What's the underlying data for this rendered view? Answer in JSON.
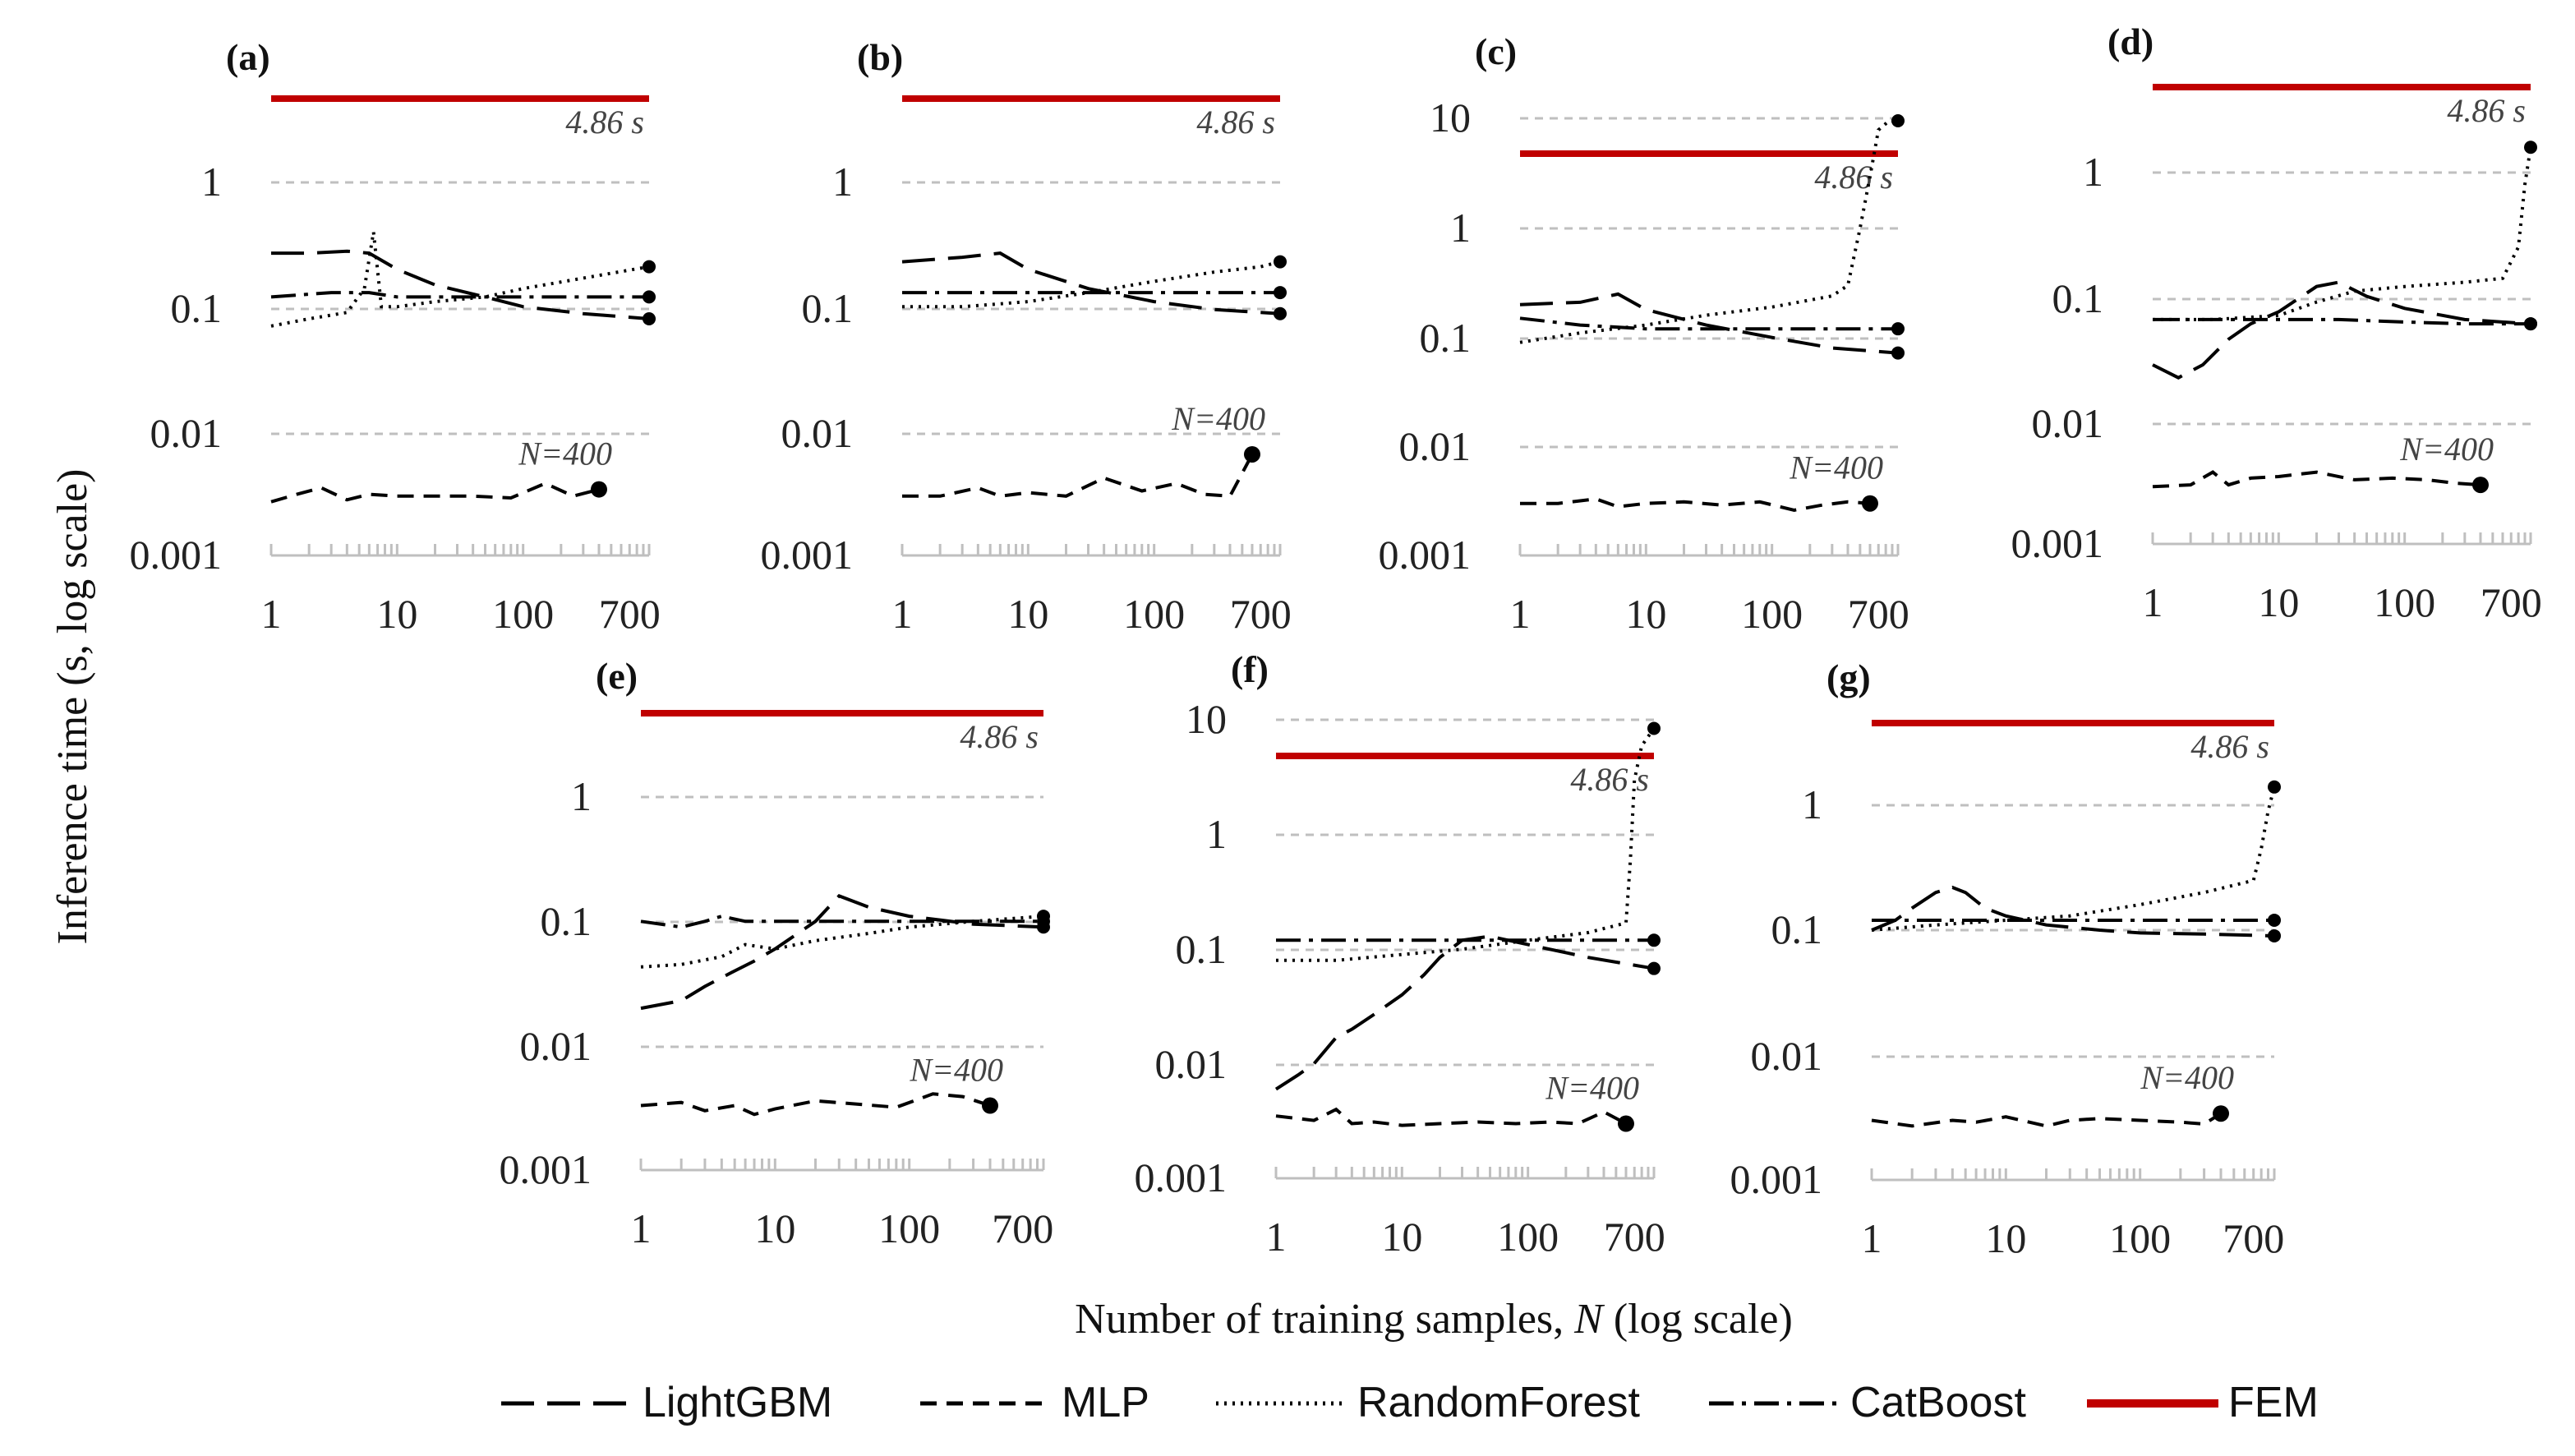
{
  "figure": {
    "ylabel": "Inference time (s, log scale)",
    "xlabel_prefix": "Number of training samples, ",
    "xlabel_var": "N",
    "xlabel_suffix": " (log scale)"
  },
  "legend": [
    {
      "name": "LightGBM",
      "style": "longdash",
      "color": "#000000"
    },
    {
      "name": "MLP",
      "style": "dash",
      "color": "#000000"
    },
    {
      "name": "RandomForest",
      "style": "dot",
      "color": "#000000"
    },
    {
      "name": "CatBoost",
      "style": "dashdot",
      "color": "#000000"
    },
    {
      "name": "FEM",
      "style": "solid",
      "color": "#c00000"
    }
  ],
  "colors": {
    "fem": "#c00000",
    "series": "#000000",
    "grid": "#bfbfbf"
  },
  "chart_data": [
    {
      "label": "(a)",
      "type": "line",
      "x_scale": "log",
      "y_scale": "log",
      "xlim": [
        1,
        1000
      ],
      "ylim": [
        0.001,
        5
      ],
      "xticks": [
        "1",
        "10",
        "100",
        "700"
      ],
      "yticks": [
        "0.001",
        "0.01",
        "0.1",
        "1"
      ],
      "fem_value": 4.86,
      "fem_label": "4.86 s",
      "n_label": "N=400",
      "series": [
        {
          "name": "LightGBM",
          "x": [
            1,
            2,
            4,
            6,
            10,
            20,
            50,
            100,
            300,
            1000
          ],
          "y": [
            0.27,
            0.27,
            0.28,
            0.27,
            0.2,
            0.15,
            0.12,
            0.1,
            0.088,
            0.08
          ]
        },
        {
          "name": "MLP",
          "x": [
            1,
            1.6,
            2.5,
            4,
            6,
            10,
            20,
            40,
            80,
            150,
            250,
            400
          ],
          "y": [
            0.0027,
            0.0031,
            0.0035,
            0.0028,
            0.0031,
            0.003,
            0.003,
            0.003,
            0.0029,
            0.0038,
            0.003,
            0.0034
          ]
        },
        {
          "name": "RandomForest",
          "x": [
            1,
            2,
            4,
            5.5,
            6.5,
            7.5,
            10,
            20,
            50,
            100,
            300,
            1000
          ],
          "y": [
            0.07,
            0.08,
            0.09,
            0.14,
            0.4,
            0.1,
            0.1,
            0.11,
            0.12,
            0.14,
            0.17,
            0.21
          ]
        },
        {
          "name": "CatBoost",
          "x": [
            1,
            3,
            6,
            10,
            30,
            100,
            300,
            1000
          ],
          "y": [
            0.12,
            0.13,
            0.13,
            0.12,
            0.12,
            0.12,
            0.12,
            0.12
          ]
        }
      ]
    },
    {
      "label": "(b)",
      "type": "line",
      "x_scale": "log",
      "y_scale": "log",
      "xlim": [
        1,
        1000
      ],
      "ylim": [
        0.001,
        5
      ],
      "xticks": [
        "1",
        "10",
        "100",
        "700"
      ],
      "yticks": [
        "0.001",
        "0.01",
        "0.1",
        "1"
      ],
      "fem_value": 4.86,
      "fem_label": "4.86 s",
      "n_label": "N=400",
      "series": [
        {
          "name": "LightGBM",
          "x": [
            1,
            3,
            6,
            10,
            30,
            100,
            300,
            1000
          ],
          "y": [
            0.23,
            0.25,
            0.27,
            0.2,
            0.14,
            0.11,
            0.095,
            0.088
          ]
        },
        {
          "name": "MLP",
          "x": [
            1,
            2,
            4,
            6,
            10,
            20,
            40,
            80,
            150,
            250,
            400,
            600
          ],
          "y": [
            0.003,
            0.003,
            0.0035,
            0.003,
            0.0032,
            0.003,
            0.0042,
            0.0033,
            0.0038,
            0.0031,
            0.003,
            0.0065
          ]
        },
        {
          "name": "RandomForest",
          "x": [
            1,
            3,
            10,
            30,
            100,
            300,
            700,
            1000
          ],
          "y": [
            0.1,
            0.1,
            0.11,
            0.13,
            0.16,
            0.19,
            0.21,
            0.23
          ]
        },
        {
          "name": "CatBoost",
          "x": [
            1,
            3,
            10,
            30,
            100,
            300,
            1000
          ],
          "y": [
            0.13,
            0.13,
            0.13,
            0.13,
            0.13,
            0.13,
            0.13
          ]
        }
      ]
    },
    {
      "label": "(c)",
      "type": "line",
      "x_scale": "log",
      "y_scale": "log",
      "xlim": [
        1,
        1000
      ],
      "ylim": [
        0.001,
        15
      ],
      "xticks": [
        "1",
        "10",
        "100",
        "700"
      ],
      "yticks": [
        "0.001",
        "0.01",
        "0.1",
        "1",
        "10"
      ],
      "fem_value": 4.86,
      "fem_label": "4.86 s",
      "n_label": "N=400",
      "series": [
        {
          "name": "LightGBM",
          "x": [
            1,
            3,
            6,
            10,
            30,
            100,
            300,
            1000
          ],
          "y": [
            0.2,
            0.21,
            0.25,
            0.18,
            0.13,
            0.1,
            0.08,
            0.072
          ]
        },
        {
          "name": "MLP",
          "x": [
            1,
            2,
            4,
            6,
            10,
            20,
            40,
            80,
            150,
            250,
            400,
            600
          ],
          "y": [
            0.003,
            0.003,
            0.0033,
            0.0028,
            0.003,
            0.0031,
            0.0029,
            0.0031,
            0.0026,
            0.0029,
            0.0031,
            0.003
          ]
        },
        {
          "name": "RandomForest",
          "x": [
            1,
            3,
            10,
            30,
            100,
            300,
            400,
            500,
            600,
            700,
            850,
            1000
          ],
          "y": [
            0.09,
            0.11,
            0.13,
            0.16,
            0.19,
            0.24,
            0.3,
            1.0,
            3.0,
            8.0,
            13.0,
            15.0
          ]
        },
        {
          "name": "CatBoost",
          "x": [
            1,
            3,
            10,
            30,
            100,
            300,
            1000
          ],
          "y": [
            0.15,
            0.13,
            0.12,
            0.12,
            0.12,
            0.12,
            0.12
          ]
        }
      ]
    },
    {
      "label": "(d)",
      "type": "line",
      "x_scale": "log",
      "y_scale": "log",
      "xlim": [
        1,
        1000
      ],
      "ylim": [
        0.001,
        5
      ],
      "xticks": [
        "1",
        "10",
        "100",
        "700"
      ],
      "yticks": [
        "0.001",
        "0.01",
        "0.1",
        "1"
      ],
      "fem_value": 4.86,
      "fem_label": "4.86 s",
      "n_label": "N=400",
      "series": [
        {
          "name": "LightGBM",
          "x": [
            1,
            1.6,
            2.5,
            4,
            6,
            10,
            20,
            30,
            50,
            100,
            300,
            1000
          ],
          "y": [
            0.028,
            0.022,
            0.028,
            0.045,
            0.06,
            0.075,
            0.12,
            0.13,
            0.1,
            0.08,
            0.065,
            0.06
          ]
        },
        {
          "name": "MLP",
          "x": [
            1,
            2,
            3,
            4,
            6,
            10,
            20,
            40,
            80,
            150,
            250,
            400
          ],
          "y": [
            0.0029,
            0.003,
            0.0038,
            0.003,
            0.0034,
            0.0035,
            0.0038,
            0.0033,
            0.0034,
            0.0033,
            0.0031,
            0.003
          ]
        },
        {
          "name": "RandomForest",
          "x": [
            1,
            3,
            10,
            20,
            40,
            100,
            300,
            600,
            800,
            900,
            1000
          ],
          "y": [
            0.065,
            0.065,
            0.07,
            0.09,
            0.11,
            0.12,
            0.13,
            0.14,
            0.25,
            0.8,
            1.6
          ]
        },
        {
          "name": "CatBoost",
          "x": [
            1,
            3,
            10,
            30,
            100,
            300,
            1000
          ],
          "y": [
            0.065,
            0.065,
            0.065,
            0.065,
            0.062,
            0.06,
            0.06
          ]
        }
      ]
    },
    {
      "label": "(e)",
      "type": "line",
      "x_scale": "log",
      "y_scale": "log",
      "xlim": [
        1,
        1000
      ],
      "ylim": [
        0.001,
        5
      ],
      "xticks": [
        "1",
        "10",
        "100",
        "700"
      ],
      "yticks": [
        "0.001",
        "0.01",
        "0.1",
        "1"
      ],
      "fem_value": 4.86,
      "fem_label": "4.86 s",
      "n_label": "N=400",
      "series": [
        {
          "name": "LightGBM",
          "x": [
            1,
            2,
            3,
            5,
            7,
            10,
            20,
            30,
            50,
            100,
            300,
            1000
          ],
          "y": [
            0.02,
            0.023,
            0.03,
            0.04,
            0.048,
            0.06,
            0.1,
            0.16,
            0.13,
            0.11,
            0.095,
            0.09
          ]
        },
        {
          "name": "MLP",
          "x": [
            1,
            2,
            3,
            5,
            7,
            10,
            20,
            40,
            80,
            150,
            250,
            400
          ],
          "y": [
            0.0033,
            0.0035,
            0.003,
            0.0033,
            0.0028,
            0.0031,
            0.0036,
            0.0034,
            0.0032,
            0.0041,
            0.0039,
            0.0033
          ]
        },
        {
          "name": "RandomForest",
          "x": [
            1,
            2,
            4,
            6,
            10,
            20,
            50,
            100,
            300,
            1000
          ],
          "y": [
            0.043,
            0.045,
            0.052,
            0.065,
            0.06,
            0.07,
            0.08,
            0.09,
            0.1,
            0.11
          ]
        },
        {
          "name": "CatBoost",
          "x": [
            1,
            2,
            3,
            4,
            6,
            10,
            30,
            100,
            300,
            1000
          ],
          "y": [
            0.1,
            0.09,
            0.1,
            0.11,
            0.1,
            0.1,
            0.1,
            0.1,
            0.1,
            0.1
          ]
        }
      ]
    },
    {
      "label": "(f)",
      "type": "line",
      "x_scale": "log",
      "y_scale": "log",
      "xlim": [
        1,
        1000
      ],
      "ylim": [
        0.001,
        15
      ],
      "xticks": [
        "1",
        "10",
        "100",
        "700"
      ],
      "yticks": [
        "0.001",
        "0.01",
        "0.1",
        "1",
        "10"
      ],
      "fem_value": 4.86,
      "fem_label": "4.86 s",
      "n_label": "N=400",
      "series": [
        {
          "name": "LightGBM",
          "x": [
            1,
            1.5,
            2,
            3,
            4,
            6,
            10,
            15,
            20,
            30,
            50,
            100,
            300,
            1000
          ],
          "y": [
            0.006,
            0.008,
            0.01,
            0.017,
            0.02,
            0.027,
            0.04,
            0.06,
            0.085,
            0.12,
            0.13,
            0.11,
            0.085,
            0.068
          ]
        },
        {
          "name": "MLP",
          "x": [
            1,
            2,
            3,
            4,
            6,
            10,
            20,
            40,
            80,
            150,
            250,
            400,
            600
          ],
          "y": [
            0.0035,
            0.0032,
            0.004,
            0.003,
            0.0031,
            0.0029,
            0.003,
            0.0031,
            0.003,
            0.0031,
            0.003,
            0.0038,
            0.003
          ]
        },
        {
          "name": "RandomForest",
          "x": [
            1,
            3,
            10,
            30,
            100,
            300,
            600,
            650,
            700,
            800,
            1000
          ],
          "y": [
            0.08,
            0.08,
            0.09,
            0.1,
            0.12,
            0.14,
            0.17,
            0.6,
            3.0,
            6.0,
            8.5
          ]
        },
        {
          "name": "CatBoost",
          "x": [
            1,
            3,
            10,
            30,
            100,
            300,
            1000
          ],
          "y": [
            0.12,
            0.12,
            0.12,
            0.12,
            0.12,
            0.12,
            0.12
          ]
        }
      ]
    },
    {
      "label": "(g)",
      "type": "line",
      "x_scale": "log",
      "y_scale": "log",
      "xlim": [
        1,
        1000
      ],
      "ylim": [
        0.001,
        5
      ],
      "xticks": [
        "1",
        "10",
        "100",
        "700"
      ],
      "yticks": [
        "0.001",
        "0.01",
        "0.1",
        "1"
      ],
      "fem_value": 4.86,
      "fem_label": "4.86 s",
      "n_label": "N=400",
      "series": [
        {
          "name": "LightGBM",
          "x": [
            1,
            1.5,
            2,
            3,
            4,
            5,
            7,
            10,
            20,
            50,
            100,
            300,
            1000
          ],
          "y": [
            0.1,
            0.12,
            0.15,
            0.2,
            0.22,
            0.2,
            0.15,
            0.13,
            0.11,
            0.1,
            0.095,
            0.093,
            0.09
          ]
        },
        {
          "name": "MLP",
          "x": [
            1,
            2,
            4,
            6,
            10,
            20,
            30,
            50,
            100,
            200,
            300,
            400
          ],
          "y": [
            0.003,
            0.0027,
            0.003,
            0.0029,
            0.0032,
            0.0027,
            0.003,
            0.0031,
            0.003,
            0.0029,
            0.0028,
            0.0034
          ]
        },
        {
          "name": "RandomForest",
          "x": [
            1,
            3,
            10,
            30,
            100,
            300,
            700,
            800,
            900,
            1000
          ],
          "y": [
            0.1,
            0.11,
            0.12,
            0.13,
            0.16,
            0.2,
            0.25,
            0.45,
            0.9,
            1.4
          ]
        },
        {
          "name": "CatBoost",
          "x": [
            1,
            3,
            10,
            30,
            100,
            300,
            1000
          ],
          "y": [
            0.12,
            0.12,
            0.12,
            0.12,
            0.12,
            0.12,
            0.12
          ]
        }
      ]
    }
  ]
}
